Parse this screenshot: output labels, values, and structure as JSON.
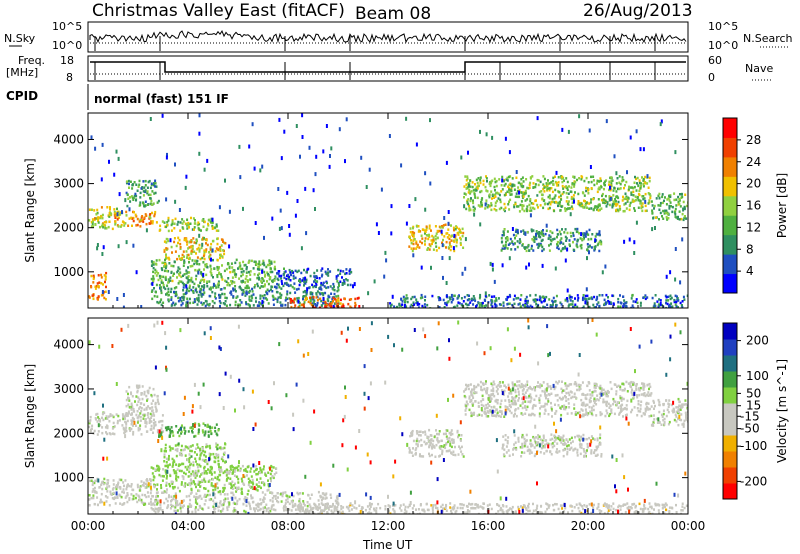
{
  "header": {
    "title": "Christmas Valley East (fitACF)",
    "beam": "Beam 08",
    "date": "26/Aug/2013"
  },
  "top_panels": {
    "nsky_label": "N.Sky",
    "nsky_ticks": [
      "10^5",
      "10^0"
    ],
    "nsearch_label": "N.Search",
    "freq_label_1": "Freq.",
    "freq_label_2": "[MHz]",
    "freq_ticks": [
      "18",
      "8"
    ],
    "nave_ticks": [
      "60",
      "0"
    ],
    "nave_label": "Nave",
    "cpid_label": "CPID",
    "cpid_value": "normal (fast) 151 IF"
  },
  "colors": {
    "power": [
      "#0000ff",
      "#1f4fc0",
      "#2f8f60",
      "#4fb040",
      "#90d040",
      "#f0c000",
      "#f08000",
      "#f04000",
      "#ff0000"
    ],
    "velocity": [
      "#ff0000",
      "#f04000",
      "#f08000",
      "#f0b000",
      "#c8c8c0",
      "#c8c8c0",
      "#80d040",
      "#40a040",
      "#1f6f80",
      "#2040c0",
      "#0000c0"
    ]
  },
  "chart_data": [
    {
      "type": "heatmap",
      "name": "power",
      "xlabel": "",
      "ylabel": "Slant Range [km]",
      "xlim": [
        0,
        24
      ],
      "ylim": [
        180,
        4600
      ],
      "yticks": [
        1000,
        2000,
        3000,
        4000
      ],
      "colorbar": {
        "label": "Power [dB]",
        "ticks": [
          4,
          8,
          12,
          16,
          20,
          24,
          28
        ],
        "range": [
          0,
          32
        ]
      },
      "regions": [
        {
          "t0": 0.0,
          "t1": 1.2,
          "r0": 2000,
          "r1": 2500,
          "v": 17
        },
        {
          "t0": 1.0,
          "t1": 2.8,
          "r0": 2050,
          "r1": 2400,
          "v": 21
        },
        {
          "t0": 2.8,
          "t1": 5.2,
          "r0": 1950,
          "r1": 2250,
          "v": 15
        },
        {
          "t0": 1.5,
          "t1": 2.8,
          "r0": 2500,
          "r1": 3100,
          "v": 11
        },
        {
          "t0": 3.0,
          "t1": 5.5,
          "r0": 1300,
          "r1": 1800,
          "v": 19
        },
        {
          "t0": 2.5,
          "t1": 7.5,
          "r0": 700,
          "r1": 1300,
          "v": 13
        },
        {
          "t0": 0.0,
          "t1": 0.7,
          "r0": 400,
          "r1": 1000,
          "v": 23
        },
        {
          "t0": 2.5,
          "t1": 10.0,
          "r0": 250,
          "r1": 700,
          "v": 9
        },
        {
          "t0": 7.5,
          "t1": 10.5,
          "r0": 700,
          "r1": 1100,
          "v": 6
        },
        {
          "t0": 8.0,
          "t1": 11.0,
          "r0": 200,
          "r1": 450,
          "v": 25
        },
        {
          "t0": 12.8,
          "t1": 15.0,
          "r0": 1500,
          "r1": 2100,
          "v": 19
        },
        {
          "t0": 12.0,
          "t1": 24.0,
          "r0": 200,
          "r1": 500,
          "v": 7
        },
        {
          "t0": 15.0,
          "t1": 22.5,
          "r0": 2400,
          "r1": 3200,
          "v": 15
        },
        {
          "t0": 16.5,
          "t1": 20.5,
          "r0": 1500,
          "r1": 2000,
          "v": 10
        },
        {
          "t0": 22.5,
          "t1": 24.0,
          "r0": 2200,
          "r1": 2800,
          "v": 13
        }
      ]
    },
    {
      "type": "heatmap",
      "name": "velocity",
      "xlabel": "Time UT",
      "ylabel": "Slant Range [km]",
      "xlim": [
        0,
        24
      ],
      "ylim": [
        180,
        4600
      ],
      "yticks": [
        1000,
        2000,
        3000,
        4000
      ],
      "xticks": [
        "00:00",
        "04:00",
        "08:00",
        "12:00",
        "16:00",
        "20:00",
        "00:00"
      ],
      "colorbar": {
        "label": "Velocity [m s^-1]",
        "ticks": [
          -200,
          -100,
          -50,
          -15,
          15,
          50,
          100,
          200
        ],
        "range": [
          -250,
          250
        ]
      },
      "regions": [
        {
          "t0": 0.0,
          "t1": 3.0,
          "r0": 2000,
          "r1": 2500,
          "v": 0
        },
        {
          "t0": 1.5,
          "t1": 2.8,
          "r0": 2500,
          "r1": 3100,
          "v": 0
        },
        {
          "t0": 2.8,
          "t1": 5.2,
          "r0": 1950,
          "r1": 2250,
          "v": 80
        },
        {
          "t0": 3.0,
          "t1": 5.5,
          "r0": 1300,
          "r1": 1800,
          "v": 40
        },
        {
          "t0": 2.5,
          "t1": 7.5,
          "r0": 700,
          "r1": 1300,
          "v": 35
        },
        {
          "t0": 0.0,
          "t1": 2.5,
          "r0": 400,
          "r1": 1000,
          "v": 0
        },
        {
          "t0": 2.5,
          "t1": 10.0,
          "r0": 250,
          "r1": 700,
          "v": 0
        },
        {
          "t0": 8.0,
          "t1": 24.0,
          "r0": 200,
          "r1": 450,
          "v": -40
        },
        {
          "t0": 12.8,
          "t1": 15.0,
          "r0": 1500,
          "r1": 2100,
          "v": 0
        },
        {
          "t0": 15.0,
          "t1": 22.5,
          "r0": 2400,
          "r1": 3200,
          "v": 0
        },
        {
          "t0": 16.5,
          "t1": 20.5,
          "r0": 1500,
          "r1": 2000,
          "v": 0
        },
        {
          "t0": 22.5,
          "t1": 24.0,
          "r0": 2200,
          "r1": 2800,
          "v": 0
        }
      ]
    }
  ]
}
